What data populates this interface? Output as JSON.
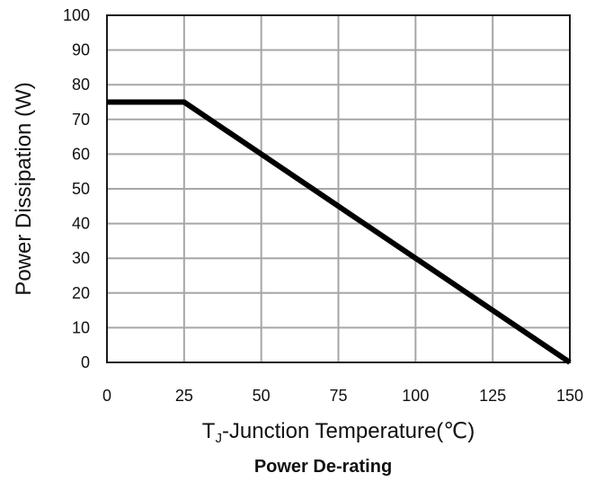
{
  "chart_data": {
    "type": "line",
    "title": "Power De-rating",
    "xlabel": {
      "prefix": "T",
      "subscript": "J",
      "suffix": "-Junction Temperature(℃)"
    },
    "ylabel": "Power Dissipation (W)",
    "xlim": [
      0,
      150
    ],
    "ylim": [
      0,
      100
    ],
    "xticks": [
      0,
      25,
      50,
      75,
      100,
      125,
      150
    ],
    "yticks": [
      0,
      10,
      20,
      30,
      40,
      50,
      60,
      70,
      80,
      90,
      100
    ],
    "grid": true,
    "series": [
      {
        "x": [
          0,
          25,
          150
        ],
        "y": [
          75,
          75,
          0
        ]
      }
    ],
    "colors": {
      "line": "#000000",
      "grid": "#a6a6a6",
      "frame": "#1a1a1a"
    }
  }
}
